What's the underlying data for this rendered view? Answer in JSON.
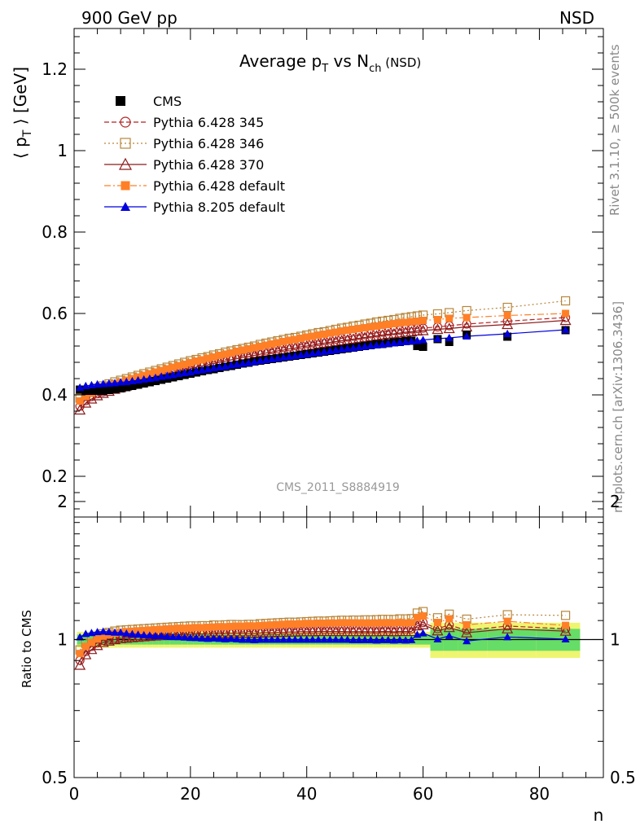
{
  "header": {
    "left": "900 GeV pp",
    "right": "NSD"
  },
  "side_labels": {
    "rivet": "Rivet 3.1.10, ≥ 500k events",
    "mcplots": "mcplots.cern.ch [arXiv:1306.3436]"
  },
  "watermark": "CMS_2011_S8884919",
  "title": {
    "main": "Average p",
    "sub_T": "T",
    "mid": " vs N",
    "sub_ch": "ch",
    "tail": " (NSD)"
  },
  "axes": {
    "ylabel_main": "⟨ p",
    "ylabel_sub": "T",
    "ylabel_tail": " ⟩ [GeV]",
    "ratio_ylabel": "Ratio to CMS",
    "xlabel": "n"
  },
  "chart_data": [
    {
      "type": "scatter",
      "panel": "main",
      "xlim": [
        0,
        91
      ],
      "ylim": [
        0.1,
        1.3
      ],
      "yticks": [
        0.2,
        0.4,
        0.6,
        0.8,
        1,
        1.2
      ],
      "yticklabels": [
        "0.2",
        "0.4",
        "0.6",
        "0.8",
        "1",
        "1.2"
      ],
      "legend_position": "top-left",
      "series": [
        {
          "name": "CMS",
          "color": "#000000",
          "style": "data",
          "x": [
            1,
            2,
            3,
            4,
            5,
            6,
            7,
            8,
            9,
            10,
            11,
            12,
            13,
            14,
            15,
            16,
            17,
            18,
            19,
            20,
            21,
            22,
            23,
            24,
            25,
            26,
            27,
            28,
            29,
            30,
            31,
            32,
            33,
            34,
            35,
            36,
            37,
            38,
            39,
            40,
            41,
            42,
            43,
            44,
            45,
            46,
            47,
            48,
            49,
            50,
            51,
            52,
            53,
            54,
            55,
            56,
            57,
            58,
            59,
            60,
            62.5,
            64.5,
            67.5,
            74.5,
            84.5
          ],
          "y": [
            0.413,
            0.41,
            0.41,
            0.41,
            0.41,
            0.412,
            0.414,
            0.416,
            0.419,
            0.422,
            0.425,
            0.428,
            0.431,
            0.434,
            0.437,
            0.44,
            0.443,
            0.446,
            0.449,
            0.452,
            0.455,
            0.458,
            0.461,
            0.463,
            0.466,
            0.469,
            0.471,
            0.474,
            0.477,
            0.479,
            0.482,
            0.484,
            0.486,
            0.488,
            0.49,
            0.492,
            0.494,
            0.496,
            0.498,
            0.5,
            0.502,
            0.504,
            0.506,
            0.508,
            0.51,
            0.512,
            0.514,
            0.516,
            0.518,
            0.52,
            0.522,
            0.524,
            0.525,
            0.527,
            0.529,
            0.53,
            0.532,
            0.533,
            0.52,
            0.518,
            0.537,
            0.53,
            0.548,
            0.543,
            0.559
          ]
        },
        {
          "name": "Pythia 6.428 345",
          "color": "#B22222",
          "style": "dashed",
          "marker": "circle-open",
          "x": [
            1,
            2,
            3,
            4,
            5,
            6,
            7,
            8,
            9,
            10,
            11,
            12,
            13,
            14,
            15,
            16,
            17,
            18,
            19,
            20,
            21,
            22,
            23,
            24,
            25,
            26,
            27,
            28,
            29,
            30,
            31,
            32,
            33,
            34,
            35,
            36,
            37,
            38,
            39,
            40,
            41,
            42,
            43,
            44,
            45,
            46,
            47,
            48,
            49,
            50,
            51,
            52,
            53,
            54,
            55,
            56,
            57,
            58,
            59,
            60,
            62.5,
            64.5,
            67.5,
            74.5,
            84.5
          ],
          "y": [
            0.372,
            0.386,
            0.396,
            0.403,
            0.408,
            0.413,
            0.417,
            0.421,
            0.425,
            0.429,
            0.433,
            0.437,
            0.441,
            0.445,
            0.449,
            0.453,
            0.457,
            0.461,
            0.464,
            0.468,
            0.471,
            0.474,
            0.478,
            0.481,
            0.484,
            0.487,
            0.49,
            0.493,
            0.496,
            0.499,
            0.502,
            0.505,
            0.508,
            0.511,
            0.513,
            0.516,
            0.518,
            0.521,
            0.523,
            0.526,
            0.528,
            0.531,
            0.533,
            0.535,
            0.537,
            0.539,
            0.542,
            0.544,
            0.546,
            0.548,
            0.55,
            0.552,
            0.554,
            0.556,
            0.558,
            0.559,
            0.561,
            0.562,
            0.563,
            0.564,
            0.567,
            0.57,
            0.574,
            0.581,
            0.59
          ]
        },
        {
          "name": "Pythia 6.428 346",
          "color": "#B8863B",
          "style": "dotted",
          "marker": "square-open",
          "x": [
            1,
            2,
            3,
            4,
            5,
            6,
            7,
            8,
            9,
            10,
            11,
            12,
            13,
            14,
            15,
            16,
            17,
            18,
            19,
            20,
            21,
            22,
            23,
            24,
            25,
            26,
            27,
            28,
            29,
            30,
            31,
            32,
            33,
            34,
            35,
            36,
            37,
            38,
            39,
            40,
            41,
            42,
            43,
            44,
            45,
            46,
            47,
            48,
            49,
            50,
            51,
            52,
            53,
            54,
            55,
            56,
            57,
            58,
            59,
            60,
            62.5,
            64.5,
            67.5,
            74.5,
            84.5
          ],
          "y": [
            0.392,
            0.402,
            0.41,
            0.417,
            0.422,
            0.427,
            0.432,
            0.436,
            0.44,
            0.444,
            0.448,
            0.452,
            0.456,
            0.46,
            0.464,
            0.468,
            0.472,
            0.476,
            0.48,
            0.484,
            0.487,
            0.491,
            0.494,
            0.498,
            0.501,
            0.505,
            0.508,
            0.511,
            0.514,
            0.517,
            0.52,
            0.524,
            0.527,
            0.53,
            0.533,
            0.536,
            0.539,
            0.541,
            0.544,
            0.547,
            0.55,
            0.553,
            0.555,
            0.558,
            0.561,
            0.564,
            0.566,
            0.569,
            0.571,
            0.574,
            0.576,
            0.579,
            0.581,
            0.583,
            0.585,
            0.588,
            0.59,
            0.592,
            0.594,
            0.596,
            0.599,
            0.602,
            0.607,
            0.615,
            0.631
          ]
        },
        {
          "name": "Pythia 6.428 370",
          "color": "#8B1A1A",
          "style": "solid",
          "marker": "triangle-open",
          "x": [
            1,
            2,
            3,
            4,
            5,
            6,
            7,
            8,
            9,
            10,
            11,
            12,
            13,
            14,
            15,
            16,
            17,
            18,
            19,
            20,
            21,
            22,
            23,
            24,
            25,
            26,
            27,
            28,
            29,
            30,
            31,
            32,
            33,
            34,
            35,
            36,
            37,
            38,
            39,
            40,
            41,
            42,
            43,
            44,
            45,
            46,
            47,
            48,
            49,
            50,
            51,
            52,
            53,
            54,
            55,
            56,
            57,
            58,
            59,
            60,
            62.5,
            64.5,
            67.5,
            74.5,
            84.5
          ],
          "y": [
            0.363,
            0.38,
            0.39,
            0.398,
            0.404,
            0.409,
            0.414,
            0.418,
            0.422,
            0.426,
            0.43,
            0.434,
            0.438,
            0.442,
            0.446,
            0.45,
            0.454,
            0.457,
            0.461,
            0.464,
            0.468,
            0.471,
            0.474,
            0.477,
            0.48,
            0.483,
            0.486,
            0.489,
            0.492,
            0.494,
            0.497,
            0.5,
            0.503,
            0.505,
            0.508,
            0.51,
            0.513,
            0.515,
            0.518,
            0.52,
            0.522,
            0.525,
            0.527,
            0.529,
            0.531,
            0.533,
            0.535,
            0.537,
            0.539,
            0.541,
            0.543,
            0.545,
            0.547,
            0.549,
            0.55,
            0.552,
            0.554,
            0.555,
            0.557,
            0.558,
            0.561,
            0.563,
            0.567,
            0.573,
            0.583
          ]
        },
        {
          "name": "Pythia 6.428 default",
          "color": "#FF7F27",
          "style": "dashdot",
          "marker": "square-filled",
          "x": [
            1,
            2,
            3,
            4,
            5,
            6,
            7,
            8,
            9,
            10,
            11,
            12,
            13,
            14,
            15,
            16,
            17,
            18,
            19,
            20,
            21,
            22,
            23,
            24,
            25,
            26,
            27,
            28,
            29,
            30,
            31,
            32,
            33,
            34,
            35,
            36,
            37,
            38,
            39,
            40,
            41,
            42,
            43,
            44,
            45,
            46,
            47,
            48,
            49,
            50,
            51,
            52,
            53,
            54,
            55,
            56,
            57,
            58,
            59,
            60,
            62.5,
            64.5,
            67.5,
            74.5,
            84.5
          ],
          "y": [
            0.385,
            0.396,
            0.404,
            0.411,
            0.417,
            0.422,
            0.427,
            0.431,
            0.436,
            0.44,
            0.444,
            0.448,
            0.452,
            0.456,
            0.46,
            0.464,
            0.468,
            0.472,
            0.475,
            0.479,
            0.483,
            0.486,
            0.49,
            0.493,
            0.497,
            0.5,
            0.503,
            0.507,
            0.51,
            0.513,
            0.516,
            0.519,
            0.522,
            0.525,
            0.528,
            0.531,
            0.534,
            0.536,
            0.539,
            0.542,
            0.544,
            0.547,
            0.549,
            0.552,
            0.554,
            0.557,
            0.559,
            0.561,
            0.563,
            0.565,
            0.567,
            0.569,
            0.571,
            0.573,
            0.575,
            0.577,
            0.578,
            0.58,
            0.581,
            0.583,
            0.585,
            0.588,
            0.59,
            0.595,
            0.6
          ]
        },
        {
          "name": "Pythia 8.205 default",
          "color": "#0000DD",
          "style": "solid",
          "marker": "triangle-filled",
          "x": [
            1,
            2,
            3,
            4,
            5,
            6,
            7,
            8,
            9,
            10,
            11,
            12,
            13,
            14,
            15,
            16,
            17,
            18,
            19,
            20,
            21,
            22,
            23,
            24,
            25,
            26,
            27,
            28,
            29,
            30,
            31,
            32,
            33,
            34,
            35,
            36,
            37,
            38,
            39,
            40,
            41,
            42,
            43,
            44,
            45,
            46,
            47,
            48,
            49,
            50,
            51,
            52,
            53,
            54,
            55,
            56,
            57,
            58,
            59,
            60,
            62.5,
            64.5,
            67.5,
            74.5,
            84.5
          ],
          "y": [
            0.418,
            0.422,
            0.424,
            0.426,
            0.427,
            0.428,
            0.429,
            0.431,
            0.432,
            0.434,
            0.436,
            0.438,
            0.44,
            0.442,
            0.445,
            0.447,
            0.449,
            0.452,
            0.454,
            0.456,
            0.459,
            0.461,
            0.463,
            0.466,
            0.468,
            0.47,
            0.473,
            0.475,
            0.477,
            0.479,
            0.481,
            0.484,
            0.486,
            0.488,
            0.49,
            0.492,
            0.494,
            0.496,
            0.498,
            0.5,
            0.502,
            0.504,
            0.506,
            0.508,
            0.51,
            0.512,
            0.514,
            0.515,
            0.517,
            0.519,
            0.521,
            0.522,
            0.524,
            0.526,
            0.527,
            0.529,
            0.53,
            0.532,
            0.533,
            0.535,
            0.538,
            0.54,
            0.544,
            0.55,
            0.56
          ]
        }
      ]
    },
    {
      "type": "scatter",
      "panel": "ratio",
      "xlim": [
        0,
        91
      ],
      "ylim": [
        0.5,
        1.85
      ],
      "yscale": "log",
      "yticks": [
        0.5,
        1,
        2
      ],
      "yticklabels": [
        "0.5",
        "1",
        "2"
      ],
      "xticks": [
        0,
        20,
        40,
        60,
        80
      ],
      "xticklabels": [
        "0",
        "20",
        "40",
        "60",
        "80"
      ],
      "uncertainty_bands": {
        "stat_color": "#66DD66",
        "total_color": "#EEF570"
      },
      "series_note": "ratios computed per point as model / CMS"
    }
  ]
}
